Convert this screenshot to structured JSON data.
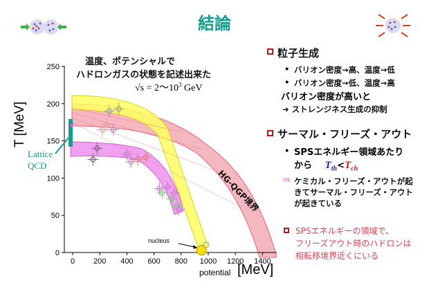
{
  "title": "結論",
  "annotation": {
    "line1": "温度、ポテンシャルで",
    "line2": "ハドロンガスの状態を記述出来た",
    "sqrt_s": "√s = 2〜10",
    "sqrt_s_exp": "3",
    "sqrt_s_unit": "GeV"
  },
  "chart_data": {
    "type": "scatter",
    "xlabel_small": "potential",
    "xlabel_unit": "[MeV]",
    "ylabel": "T [MeV]",
    "xlim": [
      -80,
      1480
    ],
    "ylim": [
      0,
      255
    ],
    "x_ticks": [
      "0",
      "200",
      "400",
      "600",
      "800",
      "1000",
      "1200",
      "1400"
    ],
    "y_ticks": [
      "0",
      "50",
      "100",
      "150",
      "200",
      "250"
    ],
    "lattice_label_line1": "Lattice",
    "lattice_label_line2": "QCD",
    "boundary_label": "HG-QGP境界",
    "nucleus_label": "nucleus",
    "nucleus_point": {
      "x": 950,
      "y": 3
    },
    "points": [
      {
        "x": 150,
        "y": 125,
        "c": "#806080"
      },
      {
        "x": 180,
        "y": 140,
        "c": "#806080"
      },
      {
        "x": 220,
        "y": 165,
        "c": "#e0a0a0"
      },
      {
        "x": 250,
        "y": 172,
        "c": "#e0a0a0"
      },
      {
        "x": 270,
        "y": 190,
        "c": "#a0a0a0"
      },
      {
        "x": 300,
        "y": 165,
        "c": "#c080c0"
      },
      {
        "x": 340,
        "y": 193,
        "c": "#a0a0a0"
      },
      {
        "x": 400,
        "y": 132,
        "c": "#c080c0"
      },
      {
        "x": 430,
        "y": 122,
        "c": "#c080c0"
      },
      {
        "x": 480,
        "y": 125,
        "c": "#e08080"
      },
      {
        "x": 540,
        "y": 128,
        "c": "#e08080"
      },
      {
        "x": 640,
        "y": 86,
        "c": "#d080d0"
      },
      {
        "x": 660,
        "y": 80,
        "c": "#80c080"
      },
      {
        "x": 700,
        "y": 88,
        "c": "#d080d0"
      },
      {
        "x": 730,
        "y": 72,
        "c": "#80c080"
      },
      {
        "x": 750,
        "y": 80,
        "c": "#d080d0"
      },
      {
        "x": 770,
        "y": 62,
        "c": "#80c080"
      },
      {
        "x": 785,
        "y": 58,
        "c": "#d080d0"
      }
    ]
  },
  "sections": [
    {
      "heading": "粒子生成",
      "bullets": [
        "バリオン密度→高、温度→低",
        "バリオン密度→低、温度→高"
      ],
      "text1": "バリオン密度が高いと",
      "text2": "➜ ストレンジネス生成の抑制"
    },
    {
      "heading": "サーマル・フリーズ・アウト",
      "bullet_line1": "SPSエネルギー領域あたり",
      "bullet_line2_prefix": "から",
      "t_th": "T",
      "t_th_sub": "th",
      "lt": "<",
      "t_ch": "T",
      "t_ch_sub": "ch",
      "arrow_line1": "ケミカル・フリーズ・アウトが起",
      "arrow_line2": "きてサーマル・フリーズ・アウト",
      "arrow_line3": "が起きている"
    },
    {
      "line1": "SPSエネルギーの領域で、",
      "line2": "フリーズアウト時のハドロンは",
      "line3": "相転移境界近くにいる"
    }
  ],
  "colors": {
    "title": "#10a090",
    "yellow_band": "#ffff60",
    "magenta_band": "#f080f0",
    "red_band": "#f06070",
    "lattice": "#10a090",
    "accent_red": "#e04050",
    "temp_blue": "#2020c0",
    "temp_red": "#d01818"
  }
}
